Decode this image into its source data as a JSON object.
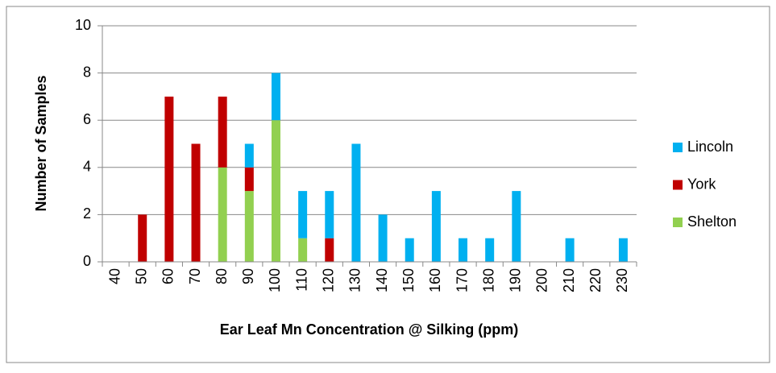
{
  "chart_data": {
    "type": "stacked_bar",
    "x_label": "Ear Leaf Mn Concentration @ Silking (ppm)",
    "y_label": "Number of Samples",
    "categories": [
      "40",
      "50",
      "60",
      "70",
      "80",
      "90",
      "100",
      "110",
      "120",
      "130",
      "140",
      "150",
      "160",
      "170",
      "180",
      "190",
      "200",
      "210",
      "220",
      "230"
    ],
    "series": [
      {
        "name": "Lincoln",
        "color": "#00b0f0",
        "values": [
          0,
          0,
          0,
          0,
          0,
          1,
          2,
          2,
          2,
          5,
          2,
          1,
          3,
          1,
          1,
          3,
          0,
          1,
          0,
          1
        ]
      },
      {
        "name": "York",
        "color": "#c00000",
        "values": [
          0,
          2,
          7,
          5,
          3,
          1,
          0,
          0,
          1,
          0,
          0,
          0,
          0,
          0,
          0,
          0,
          0,
          0,
          0,
          0
        ]
      },
      {
        "name": "Shelton",
        "color": "#92d050",
        "values": [
          0,
          0,
          0,
          0,
          4,
          3,
          6,
          1,
          0,
          0,
          0,
          0,
          0,
          0,
          0,
          0,
          0,
          0,
          0,
          0
        ]
      }
    ],
    "ylim": [
      0,
      10
    ],
    "yticks": [
      0,
      2,
      4,
      6,
      8,
      10
    ],
    "grid": true,
    "legend": "right"
  }
}
